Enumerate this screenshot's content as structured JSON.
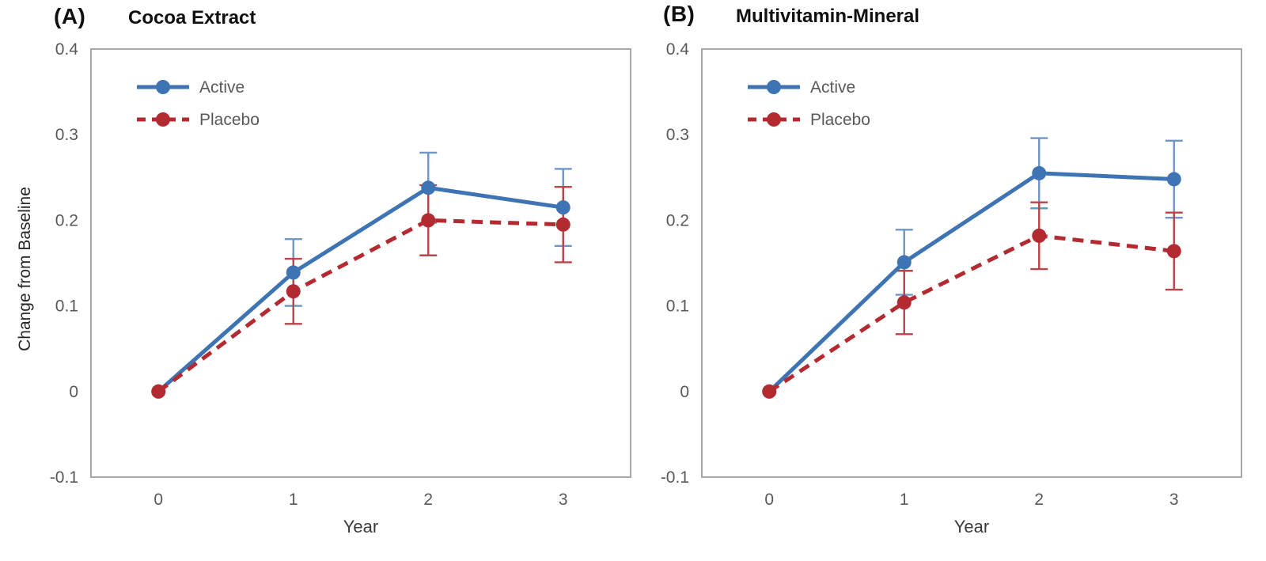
{
  "chart_data": [
    {
      "type": "line",
      "panel_label": "(A)",
      "title": "Cocoa Extract",
      "xlabel": "Year",
      "ylabel": "Change from Baseline",
      "x_categories": [
        0,
        1,
        2,
        3
      ],
      "ylim": [
        -0.1,
        0.4
      ],
      "yticks": [
        0.4,
        0.3,
        0.2,
        0.1,
        0,
        -0.1
      ],
      "ytick_labels": [
        "0.4",
        "0.3",
        "0.2",
        "0.1",
        "0",
        "-0.1"
      ],
      "grid": false,
      "legend_position": "top-left-inside",
      "series": [
        {
          "name": "Active",
          "color": "#3E74B4",
          "errorbar_color": "#6E95C6",
          "line_style": "solid",
          "marker": "circle",
          "values": [
            0,
            0.139,
            0.238,
            0.215
          ],
          "error": [
            0,
            0.039,
            0.041,
            0.045
          ]
        },
        {
          "name": "Placebo",
          "color": "#B32B31",
          "errorbar_color": "#BB4349",
          "line_style": "dashed",
          "marker": "circle",
          "values": [
            0,
            0.117,
            0.2,
            0.195
          ],
          "error": [
            0,
            0.038,
            0.041,
            0.044
          ]
        }
      ]
    },
    {
      "type": "line",
      "panel_label": "(B)",
      "title": "Multivitamin-Mineral",
      "xlabel": "Year",
      "x_categories": [
        0,
        1,
        2,
        3
      ],
      "ylim": [
        -0.1,
        0.4
      ],
      "yticks": [
        0.4,
        0.3,
        0.2,
        0.1,
        0,
        -0.1
      ],
      "ytick_labels": [
        "0.4",
        "0.3",
        "0.2",
        "0.1",
        "0",
        "-0.1"
      ],
      "grid": false,
      "legend_position": "top-left-inside",
      "series": [
        {
          "name": "Active",
          "color": "#3E74B4",
          "errorbar_color": "#6E95C6",
          "line_style": "solid",
          "marker": "circle",
          "values": [
            0,
            0.151,
            0.255,
            0.248
          ],
          "error": [
            0,
            0.038,
            0.041,
            0.045
          ]
        },
        {
          "name": "Placebo",
          "color": "#B32B31",
          "errorbar_color": "#BB4349",
          "line_style": "dashed",
          "marker": "circle",
          "values": [
            0,
            0.104,
            0.182,
            0.164
          ],
          "error": [
            0,
            0.037,
            0.039,
            0.045
          ]
        }
      ]
    }
  ]
}
